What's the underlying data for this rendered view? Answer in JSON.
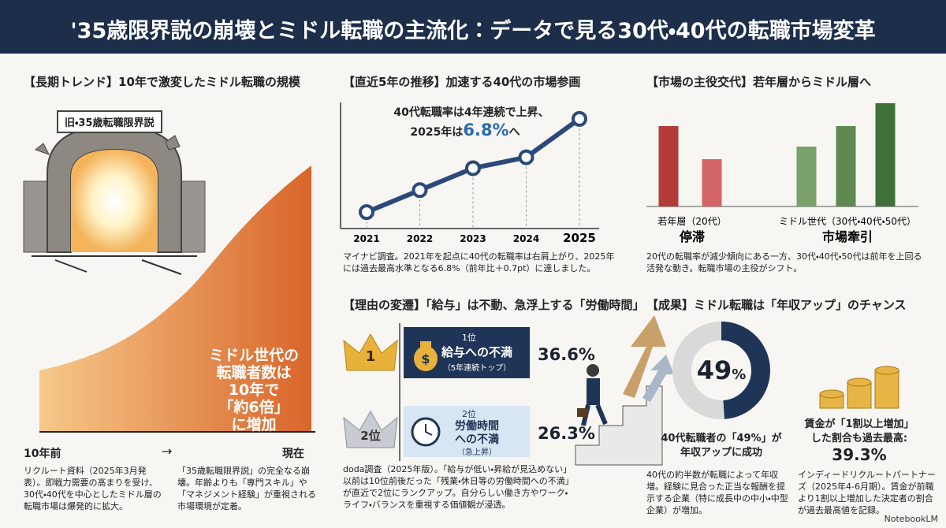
{
  "header": {
    "title": "'35歳限界説の崩壊とミドル転職の主流化：データで見る30代・40代の転職市場変革"
  },
  "panels": {
    "long_term": {
      "title": "【長期トレンド】10年で激変したミドル転職の規模",
      "badge": "旧・35歳転職限界説",
      "highlight": [
        "ミドル世代の",
        "転職者数は",
        "10年で",
        "「約6倍」",
        "に増加"
      ],
      "axis_start": "10年前",
      "axis_arrow": "→",
      "axis_end": "現在",
      "notes": [
        "リクルート資料（2025年3月発表）。即戦力需要の高まりを受け、30代・40代を中心としたミドル層の転職市場は爆発的に拡大。",
        "「35歳転職限界説」の完全なる崩壊。年齢よりも「専門スキル」や「マネジメント経験」が重視される市場環境が定着。"
      ]
    },
    "recent": {
      "title": "【直近5年の推移】加速する40代の市場参画",
      "callout": {
        "line1": "40代転職率は4年連続で上昇、",
        "prefix": "2025年は",
        "suffix": "へ"
      },
      "note": "マイナビ調査。2021年を起点に40代の転職率は右肩上がり、2025年には過去最高水準となる6.8%（前年比＋0.7pt）に達しました。"
    },
    "shift": {
      "title": "【市場の主役交代】若年層からミドル層へ",
      "note": "20代の転職率が減少傾向にある一方、30代・40代・50代は前年を上回る活発な動き。転職市場の主役がシフト。"
    },
    "reasons": {
      "title": "【理由の変遷】「給与」は不動、急浮上する「労働時間」",
      "ranks": [
        {
          "crown": "1",
          "rank": "1位",
          "label": [
            "給与への不満"
          ],
          "sub": "（5年連続トップ）",
          "share": "36.6%"
        },
        {
          "crown": "2位",
          "rank": "2位",
          "label": [
            "労働時間",
            "への不満"
          ],
          "sub": "（急上昇）",
          "share": "26.3%"
        }
      ],
      "note": "doda調査（2025年版）。「給与が低い・昇給が見込めない」以前は10位前後だった「残業・休日等の労働時間への不満」が直近で2位にランクアップ。自分らしい働き方やワーク・ライフ・バランスを重視する価値観が浸透。"
    },
    "outcome": {
      "title": "【成果】ミドル転職は「年収アップ」のチャンス",
      "caption": [
        "40代転職者の「49%」が",
        "年収アップに成功"
      ],
      "note": "40代の約半数が転職によって年収増。経験に見合った正当な報酬を提示する企業（特に成長中の中小・中型企業）が増加。",
      "wage": {
        "lines": [
          "賃金が「1割以上増加」",
          "した割合も過去最高:"
        ],
        "value": "39.3%",
        "note": "インディードリクルートパートナーズ（2025年4-6月期）。賃金が前職より1割以上増加した決定者の割合が過去最高値を記録。"
      }
    }
  },
  "chart_data": [
    {
      "type": "line",
      "categories": [
        "2021",
        "2022",
        "2023",
        "2024",
        "2025"
      ],
      "values": [
        5.1,
        5.5,
        5.9,
        6.1,
        6.8
      ],
      "value_labels": [
        null,
        null,
        null,
        null,
        "6.8%"
      ],
      "ylim": [
        4.8,
        7.1
      ],
      "color": "#2b4a7a"
    },
    {
      "type": "bar",
      "ylim": [
        0,
        140
      ],
      "groups": [
        {
          "name": "若年層（20代）",
          "status": "停滞",
          "colors": [
            "#b53b3b",
            "#d46565"
          ],
          "values": [
            102,
            60
          ]
        },
        {
          "name": "ミドル世代（30代・40代・50代）",
          "status": "市場牽引",
          "colors": [
            "#7aa06c",
            "#5e8a52",
            "#3f7038"
          ],
          "values": [
            76,
            102,
            131
          ]
        }
      ]
    },
    {
      "type": "donut",
      "values": [
        49,
        51
      ],
      "colors": [
        "#1f3557",
        "#d9d9d9"
      ],
      "center_label": "49",
      "center_unit": "%"
    }
  ],
  "footer": {
    "brand": "NotebookLM"
  }
}
